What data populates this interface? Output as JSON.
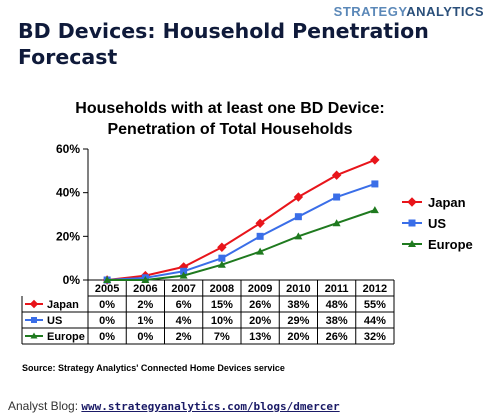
{
  "brand": {
    "part1": "STRATEGY",
    "part2": "ANALYTICS"
  },
  "slide_title": "BD Devices: Household Penetration Forecast",
  "footer": {
    "label": "Analyst Blog: ",
    "link": "www.strategyanalytics.com/blogs/dmercer"
  },
  "colors": {
    "japan": "#e8151b",
    "us": "#3a6ee8",
    "europe": "#1f7a1f",
    "title": "#0f1a3a"
  },
  "chart_data": {
    "type": "line",
    "title_line1": "Households with at least one BD Device:",
    "title_line2": "Penetration of Total Households",
    "source": "Source: Strategy Analytics' Connected Home Devices service",
    "categories": [
      "2005",
      "2006",
      "2007",
      "2008",
      "2009",
      "2010",
      "2011",
      "2012"
    ],
    "ylim": [
      0,
      60
    ],
    "yticks": [
      "0%",
      "20%",
      "40%",
      "60%"
    ],
    "ytick_values": [
      0,
      20,
      40,
      60
    ],
    "grid": false,
    "legend_position": "right",
    "series": [
      {
        "name": "Japan",
        "marker": "diamond",
        "values": [
          0,
          2,
          6,
          15,
          26,
          38,
          48,
          55
        ],
        "labels": [
          "0%",
          "2%",
          "6%",
          "15%",
          "26%",
          "38%",
          "48%",
          "55%"
        ]
      },
      {
        "name": "US",
        "marker": "square",
        "values": [
          0,
          1,
          4,
          10,
          20,
          29,
          38,
          44
        ],
        "labels": [
          "0%",
          "1%",
          "4%",
          "10%",
          "20%",
          "29%",
          "38%",
          "44%"
        ]
      },
      {
        "name": "Europe",
        "marker": "triangle",
        "values": [
          0,
          0,
          2,
          7,
          13,
          20,
          26,
          32
        ],
        "labels": [
          "0%",
          "0%",
          "2%",
          "7%",
          "13%",
          "20%",
          "26%",
          "32%"
        ]
      }
    ]
  }
}
